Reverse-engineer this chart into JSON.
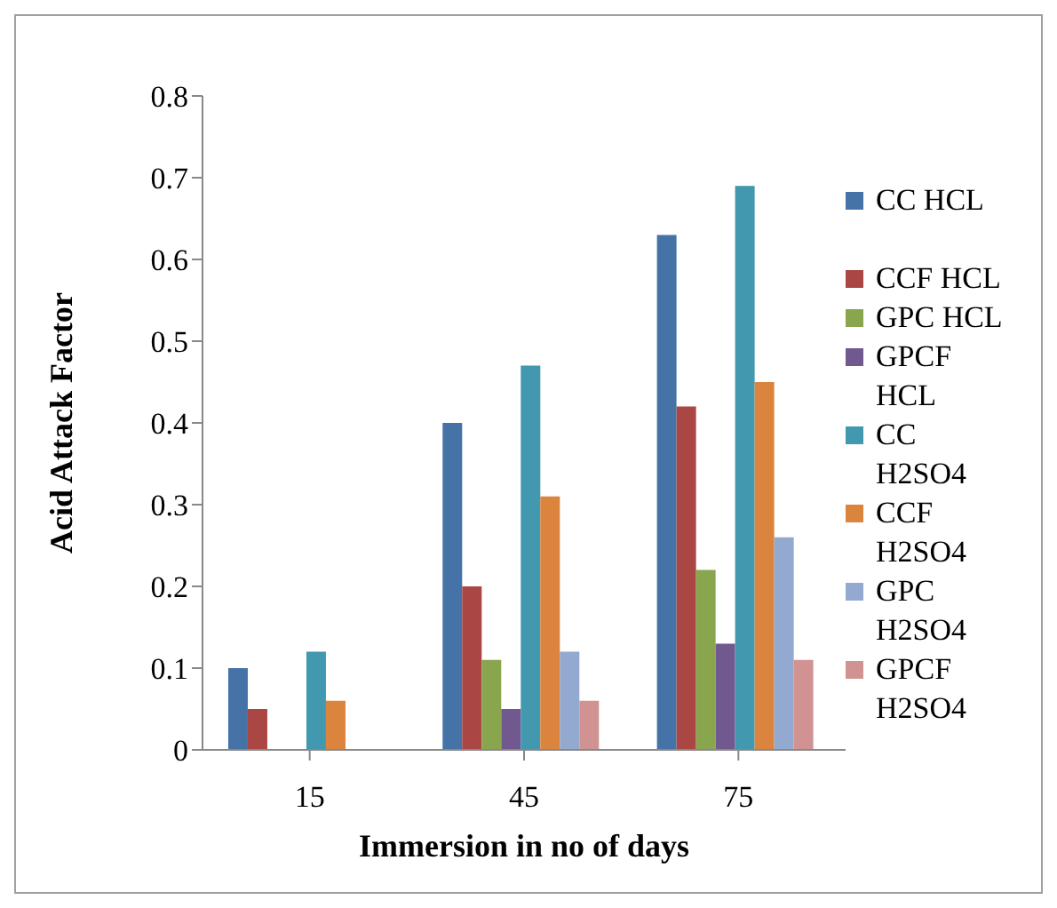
{
  "chart_data": {
    "type": "bar",
    "xlabel": "Immersion in no of days",
    "ylabel": "Acid Attack Factor",
    "categories": [
      "15",
      "45",
      "75"
    ],
    "series": [
      {
        "name": "CC HCL",
        "color": "#4572a7",
        "values": [
          0.1,
          0.4,
          0.63
        ]
      },
      {
        "name": "CCF HCL",
        "color": "#aa4643",
        "values": [
          0.05,
          0.2,
          0.42
        ]
      },
      {
        "name": "GPC HCL",
        "color": "#89a54e",
        "values": [
          0,
          0.11,
          0.22
        ]
      },
      {
        "name": "GPCF HCL",
        "color": "#71588f",
        "values": [
          0,
          0.05,
          0.13
        ]
      },
      {
        "name": "CC H2SO4",
        "color": "#4198af",
        "values": [
          0.12,
          0.47,
          0.69
        ]
      },
      {
        "name": "CCF H2SO4",
        "color": "#db843d",
        "values": [
          0.06,
          0.31,
          0.45
        ]
      },
      {
        "name": "GPC H2SO4",
        "color": "#93a9cf",
        "values": [
          0,
          0.12,
          0.26
        ]
      },
      {
        "name": "GPCF H2SO4",
        "color": "#d19392",
        "values": [
          0,
          0.06,
          0.11
        ]
      }
    ],
    "ylim": [
      0,
      0.8
    ],
    "yticks": [
      0,
      0.1,
      0.2,
      0.3,
      0.4,
      0.5,
      0.6,
      0.7,
      0.8
    ],
    "grid": false,
    "legend": "right"
  }
}
